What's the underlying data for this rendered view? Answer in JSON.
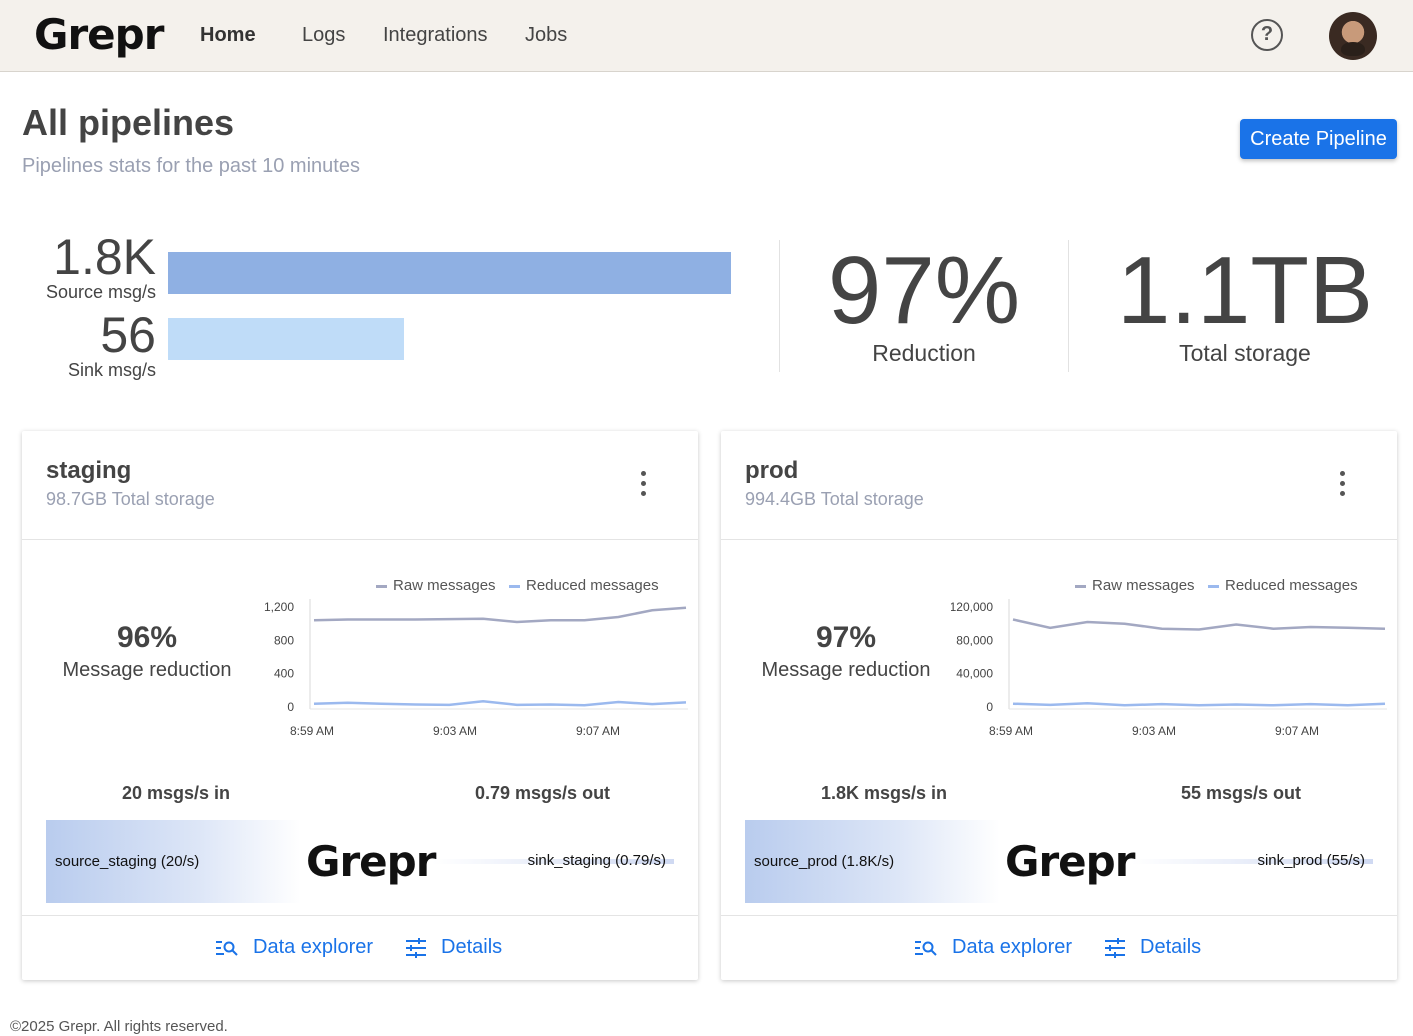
{
  "header": {
    "logo": "Grepr",
    "nav": [
      {
        "label": "Home",
        "active": true
      },
      {
        "label": "Logs",
        "active": false
      },
      {
        "label": "Integrations",
        "active": false
      },
      {
        "label": "Jobs",
        "active": false
      }
    ],
    "help_icon": "question-circle-icon",
    "avatar": "user-avatar"
  },
  "page": {
    "title": "All pipelines",
    "subtitle": "Pipelines stats for the past 10 minutes",
    "create_button": "Create Pipeline"
  },
  "summary": {
    "source_value": "1.8K",
    "source_label": "Source msg/s",
    "source_rate": 1800,
    "sink_value": "56",
    "sink_label": "Sink msg/s",
    "sink_rate": 56,
    "reduction_value": "97%",
    "reduction_label": "Reduction",
    "storage_value": "1.1TB",
    "storage_label": "Total storage",
    "colors": {
      "source_bar": "#8fb0e3",
      "sink_bar": "#bfdcf8"
    }
  },
  "pipelines": [
    {
      "name": "staging",
      "storage": "98.7GB Total storage",
      "reduction_pct": "96%",
      "reduction_label": "Message reduction",
      "msgs_in": "20 msgs/s in",
      "msgs_out": "0.79 msgs/s out",
      "source_label": "source_staging (20/s)",
      "sink_label": "sink_staging (0.79/s)",
      "logo": "Grepr",
      "data_explorer": "Data explorer",
      "details": "Details",
      "chart_data": {
        "type": "line",
        "x_ticks": [
          "8:59 AM",
          "9:03 AM",
          "9:07 AM"
        ],
        "y_ticks": [
          "1,200",
          "800",
          "400",
          "0"
        ],
        "ylim": [
          0,
          1200
        ],
        "legend": [
          "Raw messages",
          "Reduced messages"
        ],
        "series": [
          {
            "name": "Raw messages",
            "color": "#a3a8c2",
            "values": [
              1040,
              1050,
              1050,
              1050,
              1055,
              1060,
              1020,
              1040,
              1040,
              1080,
              1160,
              1190
            ]
          },
          {
            "name": "Reduced messages",
            "color": "#9bb9ee",
            "values": [
              40,
              50,
              40,
              30,
              25,
              70,
              25,
              30,
              20,
              60,
              35,
              55
            ]
          }
        ]
      }
    },
    {
      "name": "prod",
      "storage": "994.4GB Total storage",
      "reduction_pct": "97%",
      "reduction_label": "Message reduction",
      "msgs_in": "1.8K msgs/s in",
      "msgs_out": "55 msgs/s out",
      "source_label": "source_prod (1.8K/s)",
      "sink_label": "sink_prod (55/s)",
      "logo": "Grepr",
      "data_explorer": "Data explorer",
      "details": "Details",
      "chart_data": {
        "type": "line",
        "x_ticks": [
          "8:59 AM",
          "9:03 AM",
          "9:07 AM"
        ],
        "y_ticks": [
          "120,000",
          "80,000",
          "40,000",
          "0"
        ],
        "ylim": [
          0,
          120000
        ],
        "legend": [
          "Raw messages",
          "Reduced messages"
        ],
        "series": [
          {
            "name": "Raw messages",
            "color": "#a3a8c2",
            "values": [
              105000,
              95000,
              102000,
              100000,
              94000,
              93000,
              99000,
              94000,
              96000,
              95000,
              94000
            ]
          },
          {
            "name": "Reduced messages",
            "color": "#9bb9ee",
            "values": [
              4000,
              2500,
              4500,
              2000,
              3500,
              2000,
              3000,
              2000,
              3500,
              2000,
              4000
            ]
          }
        ]
      }
    }
  ],
  "footer": "©2025 Grepr. All rights reserved."
}
